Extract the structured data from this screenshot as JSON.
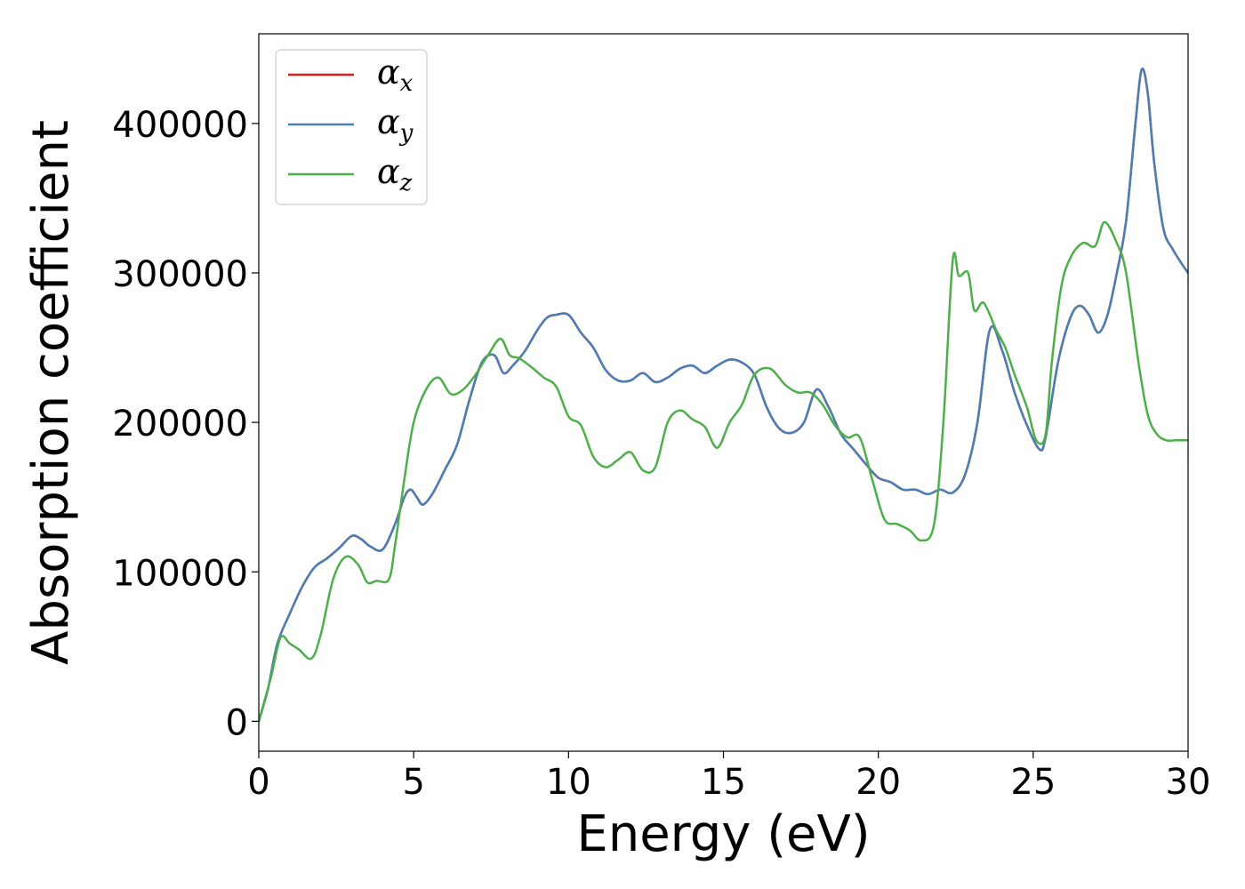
{
  "chart_data": {
    "type": "line",
    "title": "",
    "xlabel": "Energy (eV)",
    "ylabel": "Absorption coefficient",
    "xlim": [
      0,
      30
    ],
    "ylim": [
      -20000,
      460000
    ],
    "xticks": [
      0,
      5,
      10,
      15,
      20,
      25,
      30
    ],
    "xtick_labels": [
      "0",
      "5",
      "10",
      "15",
      "20",
      "25",
      "30"
    ],
    "yticks": [
      0,
      100000,
      200000,
      300000,
      400000
    ],
    "ytick_labels": [
      "0",
      "100000",
      "200000",
      "300000",
      "400000"
    ],
    "grid": false,
    "legend_position": "top-left",
    "series": [
      {
        "name": "α",
        "subscript": "x",
        "color": "#e41a1c",
        "x": [
          0,
          0.3,
          0.6,
          1.0,
          1.4,
          1.8,
          2.2,
          2.6,
          3.0,
          3.3,
          3.6,
          4.0,
          4.4,
          4.7,
          4.9,
          5.1,
          5.3,
          5.6,
          6.0,
          6.4,
          6.8,
          7.2,
          7.6,
          7.9,
          8.2,
          8.6,
          9.0,
          9.3,
          9.6,
          10.0,
          10.4,
          10.8,
          11.2,
          11.6,
          12.0,
          12.4,
          12.8,
          13.2,
          13.6,
          14.0,
          14.4,
          14.8,
          15.2,
          15.6,
          16.0,
          16.4,
          16.8,
          17.2,
          17.6,
          18.0,
          18.4,
          18.8,
          19.2,
          19.6,
          20.0,
          20.4,
          20.8,
          21.2,
          21.6,
          22.0,
          22.4,
          22.8,
          23.2,
          23.6,
          24.0,
          24.4,
          24.8,
          25.2,
          25.4,
          25.8,
          26.2,
          26.5,
          26.8,
          27.1,
          27.4,
          27.7,
          28.0,
          28.3,
          28.5,
          28.7,
          28.9,
          29.2,
          29.5,
          29.8,
          30.0
        ],
        "y": [
          0,
          22000,
          52000,
          72000,
          90000,
          103000,
          109000,
          116000,
          124000,
          122000,
          117000,
          115000,
          132000,
          150000,
          155000,
          150000,
          145000,
          152000,
          168000,
          185000,
          215000,
          240000,
          245000,
          233000,
          238000,
          248000,
          262000,
          270000,
          272000,
          272000,
          260000,
          250000,
          235000,
          228000,
          228000,
          233000,
          227000,
          230000,
          236000,
          238000,
          233000,
          238000,
          242000,
          240000,
          232000,
          210000,
          196000,
          193000,
          200000,
          222000,
          210000,
          192000,
          182000,
          172000,
          163000,
          160000,
          155000,
          155000,
          152000,
          155000,
          153000,
          165000,
          200000,
          262000,
          248000,
          220000,
          198000,
          182000,
          190000,
          240000,
          270000,
          278000,
          272000,
          260000,
          272000,
          300000,
          335000,
          400000,
          436000,
          420000,
          375000,
          330000,
          316000,
          306000,
          300000
        ]
      },
      {
        "name": "α",
        "subscript": "y",
        "color": "#4a7fb5",
        "x": [
          0,
          0.3,
          0.6,
          1.0,
          1.4,
          1.8,
          2.2,
          2.6,
          3.0,
          3.3,
          3.6,
          4.0,
          4.4,
          4.7,
          4.9,
          5.1,
          5.3,
          5.6,
          6.0,
          6.4,
          6.8,
          7.2,
          7.6,
          7.9,
          8.2,
          8.6,
          9.0,
          9.3,
          9.6,
          10.0,
          10.4,
          10.8,
          11.2,
          11.6,
          12.0,
          12.4,
          12.8,
          13.2,
          13.6,
          14.0,
          14.4,
          14.8,
          15.2,
          15.6,
          16.0,
          16.4,
          16.8,
          17.2,
          17.6,
          18.0,
          18.4,
          18.8,
          19.2,
          19.6,
          20.0,
          20.4,
          20.8,
          21.2,
          21.6,
          22.0,
          22.4,
          22.8,
          23.2,
          23.6,
          24.0,
          24.4,
          24.8,
          25.2,
          25.4,
          25.8,
          26.2,
          26.5,
          26.8,
          27.1,
          27.4,
          27.7,
          28.0,
          28.3,
          28.5,
          28.7,
          28.9,
          29.2,
          29.5,
          29.8,
          30.0
        ],
        "y": [
          0,
          22000,
          52000,
          72000,
          90000,
          103000,
          109000,
          116000,
          124000,
          122000,
          117000,
          115000,
          132000,
          150000,
          155000,
          150000,
          145000,
          152000,
          168000,
          185000,
          215000,
          240000,
          245000,
          233000,
          238000,
          248000,
          262000,
          270000,
          272000,
          272000,
          260000,
          250000,
          235000,
          228000,
          228000,
          233000,
          227000,
          230000,
          236000,
          238000,
          233000,
          238000,
          242000,
          240000,
          232000,
          210000,
          196000,
          193000,
          200000,
          222000,
          210000,
          192000,
          182000,
          172000,
          163000,
          160000,
          155000,
          155000,
          152000,
          155000,
          153000,
          165000,
          200000,
          262000,
          248000,
          220000,
          198000,
          182000,
          190000,
          240000,
          270000,
          278000,
          272000,
          260000,
          272000,
          300000,
          335000,
          400000,
          436000,
          420000,
          375000,
          330000,
          316000,
          306000,
          300000
        ]
      },
      {
        "name": "α",
        "subscript": "z",
        "color": "#4daf4a",
        "x": [
          0,
          0.4,
          0.7,
          1.0,
          1.3,
          1.7,
          2.0,
          2.4,
          2.8,
          3.2,
          3.5,
          3.8,
          4.2,
          4.4,
          4.7,
          5.0,
          5.4,
          5.8,
          6.2,
          6.6,
          7.0,
          7.4,
          7.8,
          8.1,
          8.4,
          8.8,
          9.2,
          9.6,
          10.0,
          10.4,
          10.8,
          11.2,
          11.6,
          12.0,
          12.4,
          12.8,
          13.2,
          13.6,
          14.0,
          14.4,
          14.8,
          15.2,
          15.6,
          16.0,
          16.5,
          17.0,
          17.4,
          17.8,
          18.2,
          18.6,
          19.0,
          19.4,
          19.8,
          20.2,
          20.6,
          21.0,
          21.4,
          21.8,
          22.1,
          22.4,
          22.6,
          22.9,
          23.1,
          23.4,
          23.8,
          24.1,
          24.4,
          24.8,
          25.1,
          25.4,
          25.6,
          25.9,
          26.2,
          26.6,
          27.0,
          27.3,
          27.7,
          28.0,
          28.4,
          28.7,
          29.0,
          29.3,
          29.6,
          30.0
        ],
        "y": [
          0,
          30000,
          56000,
          52000,
          48000,
          42000,
          58000,
          95000,
          110000,
          105000,
          93000,
          94000,
          95000,
          118000,
          162000,
          200000,
          222000,
          230000,
          219000,
          222000,
          232000,
          245000,
          256000,
          245000,
          243000,
          237000,
          230000,
          224000,
          204000,
          198000,
          177000,
          170000,
          175000,
          180000,
          168000,
          170000,
          200000,
          208000,
          202000,
          197000,
          183000,
          200000,
          212000,
          232000,
          236000,
          225000,
          220000,
          220000,
          212000,
          198000,
          190000,
          190000,
          162000,
          135000,
          132000,
          128000,
          121000,
          132000,
          200000,
          308000,
          298000,
          300000,
          275000,
          280000,
          262000,
          250000,
          232000,
          210000,
          188000,
          192000,
          240000,
          290000,
          310000,
          320000,
          318000,
          334000,
          320000,
          300000,
          240000,
          205000,
          192000,
          188000,
          188000,
          188000
        ]
      }
    ]
  }
}
